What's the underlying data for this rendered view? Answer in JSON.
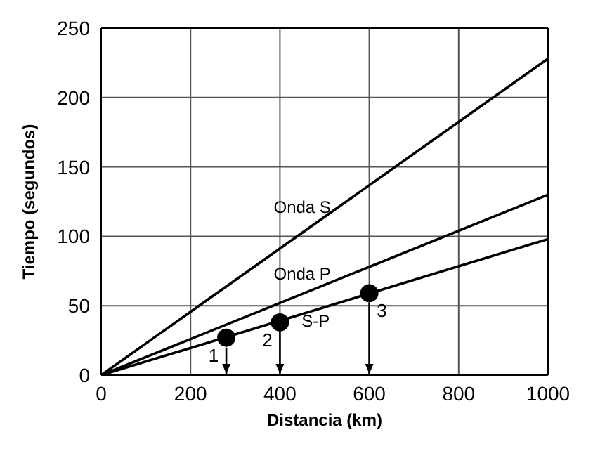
{
  "chart_data": {
    "type": "line",
    "xlabel": "Distancia (km)",
    "ylabel": "Tiempo (segundos)",
    "xlim": [
      0,
      1000
    ],
    "xticks": [
      0,
      200,
      400,
      600,
      800,
      1000
    ],
    "ylim": [
      0,
      250
    ],
    "yticks": [
      0,
      50,
      100,
      150,
      200,
      250
    ],
    "grid": true,
    "legend": false,
    "series": [
      {
        "name": "Onda S",
        "color": "#000000",
        "x": [
          0,
          1000
        ],
        "values": [
          0,
          228
        ]
      },
      {
        "name": "Onda P",
        "color": "#000000",
        "x": [
          0,
          1000
        ],
        "values": [
          0,
          130
        ]
      },
      {
        "name": "S-P",
        "color": "#000000",
        "x": [
          0,
          1000
        ],
        "values": [
          0,
          98
        ]
      },
      {
        "type": "scatter",
        "color": "#000000",
        "marker": "circle",
        "x": [
          280,
          400,
          600
        ],
        "values": [
          27,
          38,
          59
        ]
      }
    ],
    "annotations": [
      {
        "text": "1",
        "x": 280,
        "y": 27
      },
      {
        "text": "2",
        "x": 400,
        "y": 38
      },
      {
        "text": "3",
        "x": 600,
        "y": 59
      }
    ]
  }
}
